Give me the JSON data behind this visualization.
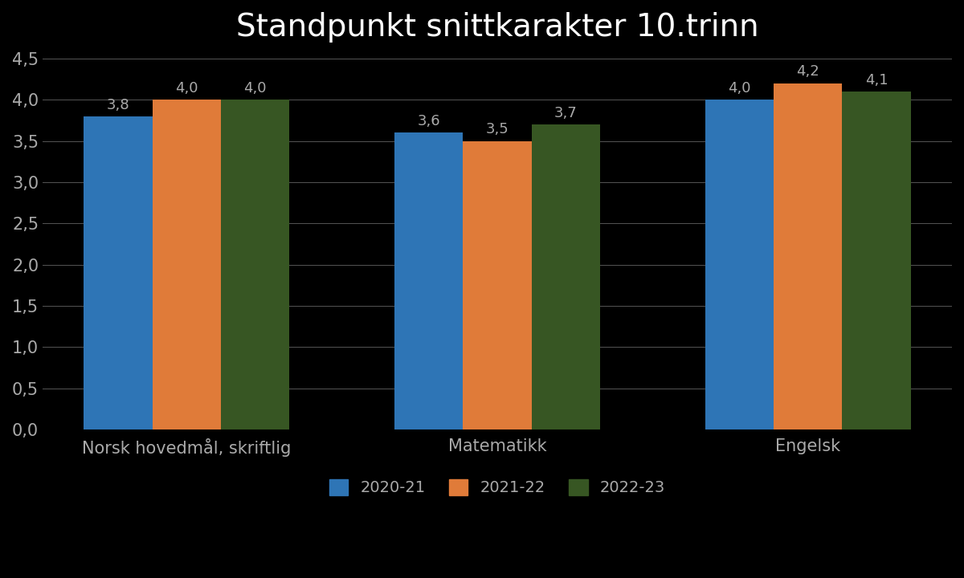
{
  "title": "Standpunkt snittkarakter 10.trinn",
  "categories": [
    "Norsk hovedmål, skriftlig",
    "Matematikk",
    "Engelsk"
  ],
  "series": {
    "2020-21": [
      3.8,
      3.6,
      4.0
    ],
    "2021-22": [
      4.0,
      3.5,
      4.2
    ],
    "2022-23": [
      4.0,
      3.7,
      4.1
    ]
  },
  "colors": {
    "2020-21": "#2E75B6",
    "2021-22": "#E07B39",
    "2022-23": "#375623"
  },
  "ylim": [
    0,
    4.5
  ],
  "yticks": [
    0.0,
    0.5,
    1.0,
    1.5,
    2.0,
    2.5,
    3.0,
    3.5,
    4.0,
    4.5
  ],
  "ytick_labels": [
    "0,0",
    "0,5",
    "1,0",
    "1,5",
    "2,0",
    "2,5",
    "3,0",
    "3,5",
    "4,0",
    "4,5"
  ],
  "background_color": "#000000",
  "plot_bg_color": "#000000",
  "title_color": "#ffffff",
  "label_color": "#aaaaaa",
  "tick_color": "#aaaaaa",
  "grid_color": "#aaaaaa",
  "bar_label_color": "#aaaaaa",
  "bar_width": 0.22,
  "title_fontsize": 28,
  "axis_label_fontsize": 15,
  "tick_fontsize": 15,
  "bar_label_fontsize": 13,
  "legend_fontsize": 14
}
